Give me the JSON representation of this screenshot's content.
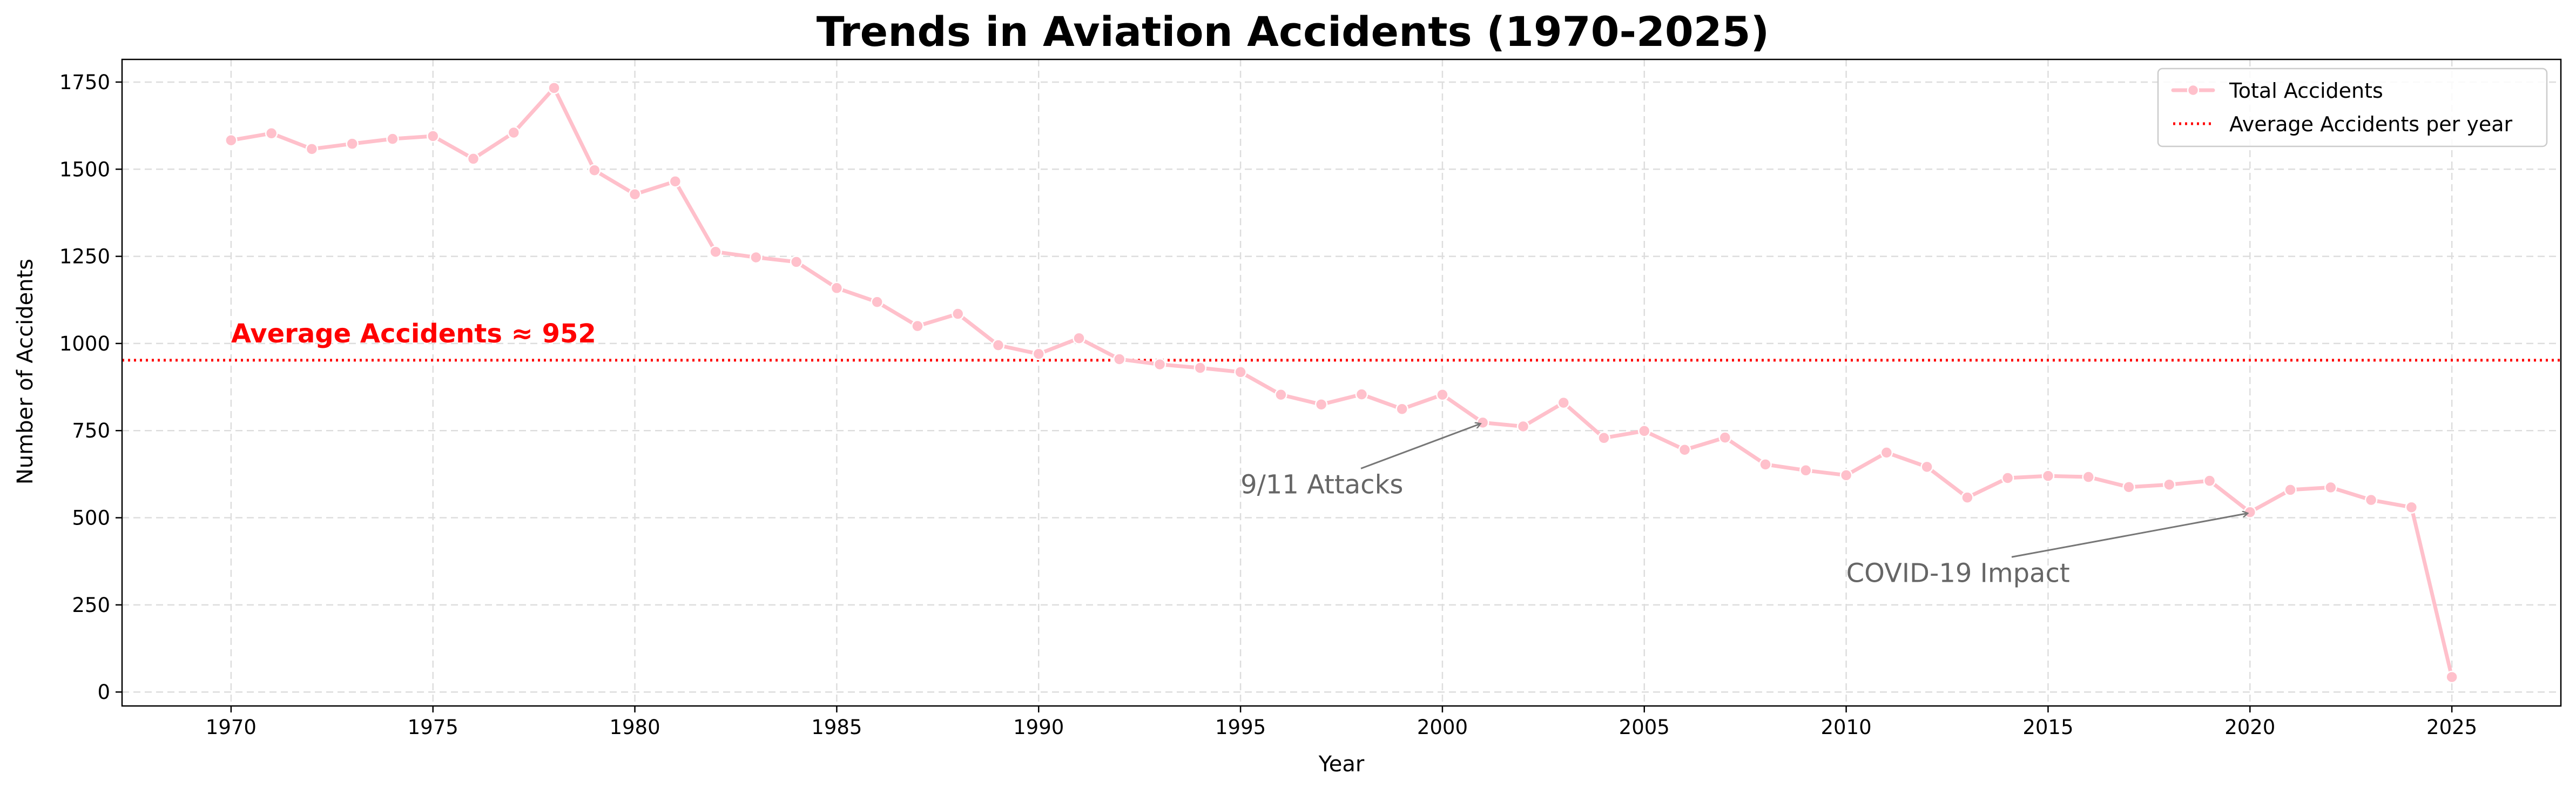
{
  "chart_data": {
    "type": "line",
    "title": "Trends in Aviation Accidents (1970-2025)",
    "xlabel": "Year",
    "ylabel": "Number of Accidents",
    "xlim": [
      1967.3,
      2027.7
    ],
    "ylim": [
      -40,
      1815
    ],
    "x_ticks": [
      1970,
      1975,
      1980,
      1985,
      1990,
      1995,
      2000,
      2005,
      2010,
      2015,
      2020,
      2025
    ],
    "y_ticks": [
      0,
      250,
      500,
      750,
      1000,
      1250,
      1500,
      1750
    ],
    "grid": true,
    "legend_position": "top-right",
    "series": [
      {
        "name": "Total Accidents",
        "color": "#ffc0cb",
        "x": [
          1970,
          1971,
          1972,
          1973,
          1974,
          1975,
          1976,
          1977,
          1978,
          1979,
          1980,
          1981,
          1982,
          1983,
          1984,
          1985,
          1986,
          1987,
          1988,
          1989,
          1990,
          1991,
          1992,
          1993,
          1994,
          1995,
          1996,
          1997,
          1998,
          1999,
          2000,
          2001,
          2002,
          2003,
          2004,
          2005,
          2006,
          2007,
          2008,
          2009,
          2010,
          2011,
          2012,
          2013,
          2014,
          2015,
          2016,
          2017,
          2018,
          2019,
          2020,
          2021,
          2022,
          2023,
          2024,
          2025
        ],
        "y": [
          1583,
          1603,
          1558,
          1573,
          1587,
          1595,
          1530,
          1605,
          1733,
          1497,
          1428,
          1465,
          1263,
          1247,
          1234,
          1159,
          1119,
          1050,
          1085,
          995,
          970,
          1015,
          955,
          940,
          930,
          918,
          853,
          825,
          854,
          812,
          853,
          773,
          762,
          830,
          729,
          749,
          695,
          730,
          653,
          636,
          622,
          687,
          646,
          558,
          614,
          620,
          617,
          588,
          595,
          606,
          516,
          580,
          587,
          551,
          530,
          43
        ]
      }
    ],
    "reference_line": {
      "name": "Average Accidents per year",
      "value": 952,
      "color": "#ff0000",
      "style": "dotted",
      "label": "Average Accidents ≈ 952"
    },
    "annotations": [
      {
        "text": "9/11 Attacks",
        "text_x": 1995,
        "text_y": 570,
        "target_x": 2001,
        "target_y": 773
      },
      {
        "text": "COVID-19 Impact",
        "text_x": 2010,
        "text_y": 316,
        "target_x": 2020,
        "target_y": 516
      }
    ]
  }
}
